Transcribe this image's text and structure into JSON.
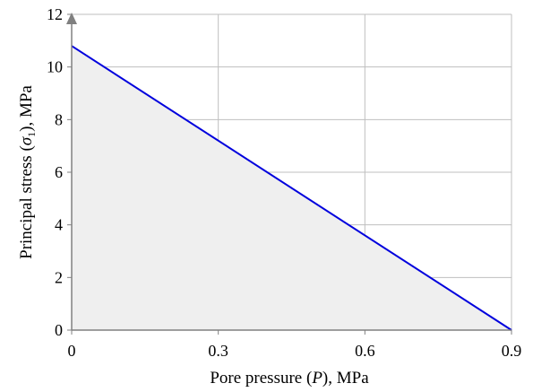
{
  "chart_data": {
    "type": "area",
    "title": "",
    "xlabel": {
      "pre": "Pore pressure (",
      "var": "P",
      "post": "), MPa"
    },
    "ylabel": {
      "pre": "Principal stress  (",
      "var": "σ",
      "sub": "1",
      "post": "), MPa"
    },
    "xlim": [
      0,
      0.9
    ],
    "ylim": [
      0,
      12
    ],
    "xticks": [
      0,
      0.3,
      0.6,
      0.9
    ],
    "xtick_labels": [
      "0",
      "0.3",
      "0.6",
      "0.9"
    ],
    "yticks": [
      0,
      2,
      4,
      6,
      8,
      10,
      12
    ],
    "ytick_labels": [
      "0",
      "2",
      "4",
      "6",
      "8",
      "10",
      "12"
    ],
    "grid": true,
    "series": [
      {
        "x": [
          0,
          0.9
        ],
        "y": [
          10.8,
          0
        ]
      }
    ],
    "colors": {
      "line": "#0000dd",
      "fill": "#efefef",
      "grid": "#bfbfbf",
      "axis": "#808080",
      "arrow": "#808080"
    }
  }
}
